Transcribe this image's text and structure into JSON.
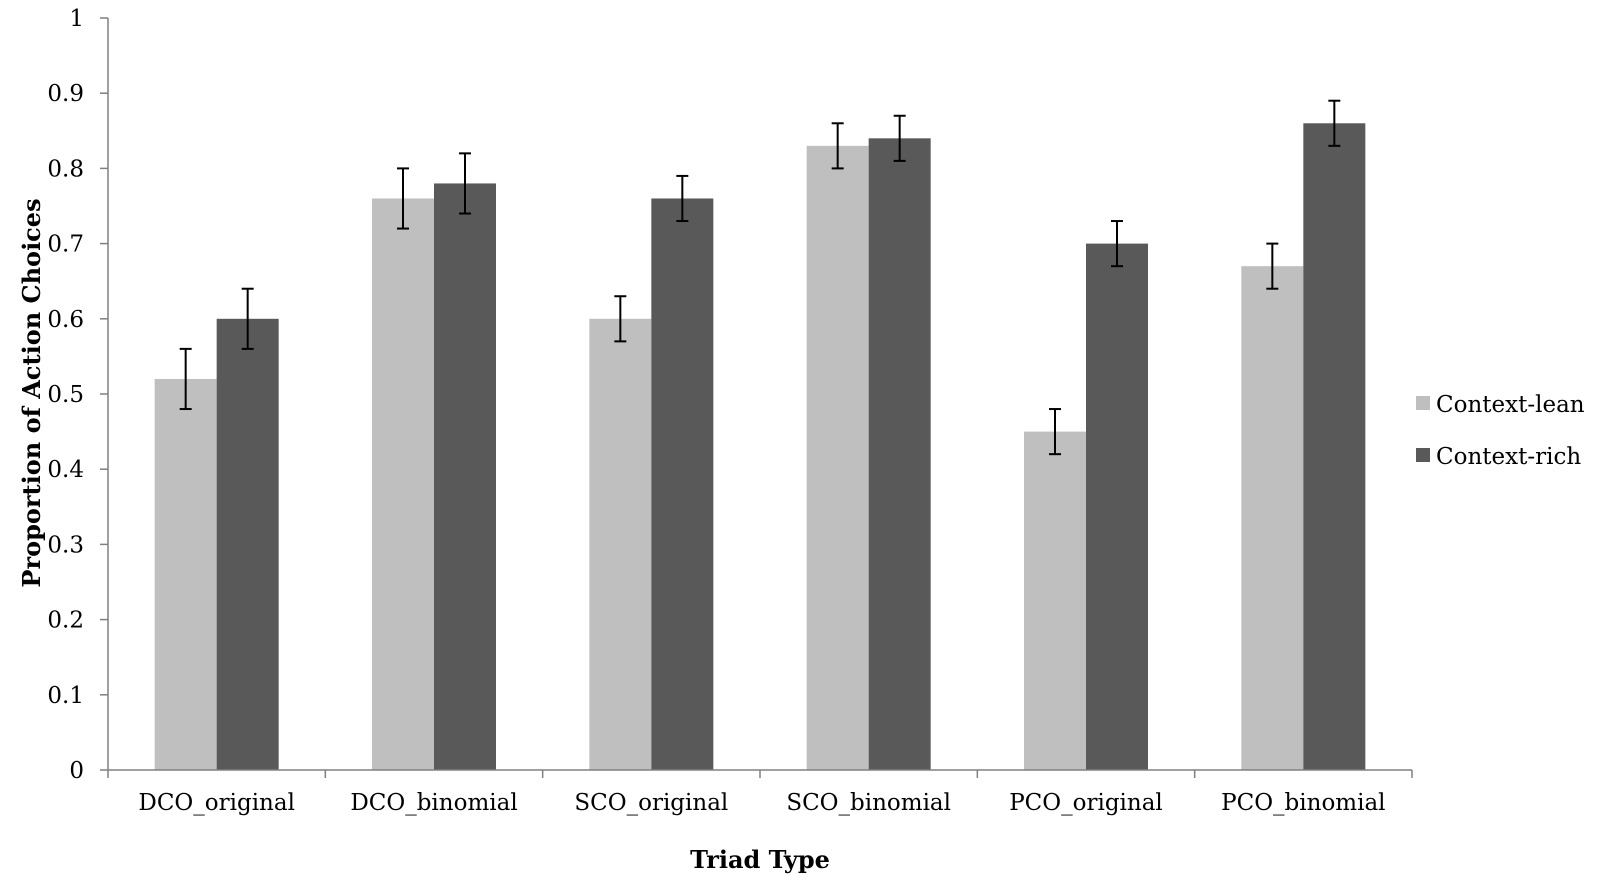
{
  "chart_data": {
    "type": "bar",
    "title": "",
    "xlabel": "Triad Type",
    "ylabel": "Proportion of Action Choices",
    "ylim": [
      0,
      1
    ],
    "yticks": [
      "0",
      "0.1",
      "0.2",
      "0.3",
      "0.4",
      "0.5",
      "0.6",
      "0.7",
      "0.8",
      "0.9",
      "1"
    ],
    "categories": [
      "DCO_original",
      "DCO_binomial",
      "SCO_original",
      "SCO_binomial",
      "PCO_original",
      "PCO_binomial"
    ],
    "series": [
      {
        "name": "Context-lean",
        "color": "#bfbfbf",
        "values": [
          0.52,
          0.76,
          0.6,
          0.83,
          0.45,
          0.67
        ],
        "error": [
          0.04,
          0.04,
          0.03,
          0.03,
          0.03,
          0.03
        ]
      },
      {
        "name": "Context-rich",
        "color": "#595959",
        "values": [
          0.6,
          0.78,
          0.76,
          0.84,
          0.7,
          0.86
        ],
        "error": [
          0.04,
          0.04,
          0.03,
          0.03,
          0.03,
          0.03
        ]
      }
    ],
    "legend_position": "right",
    "grid": false
  }
}
